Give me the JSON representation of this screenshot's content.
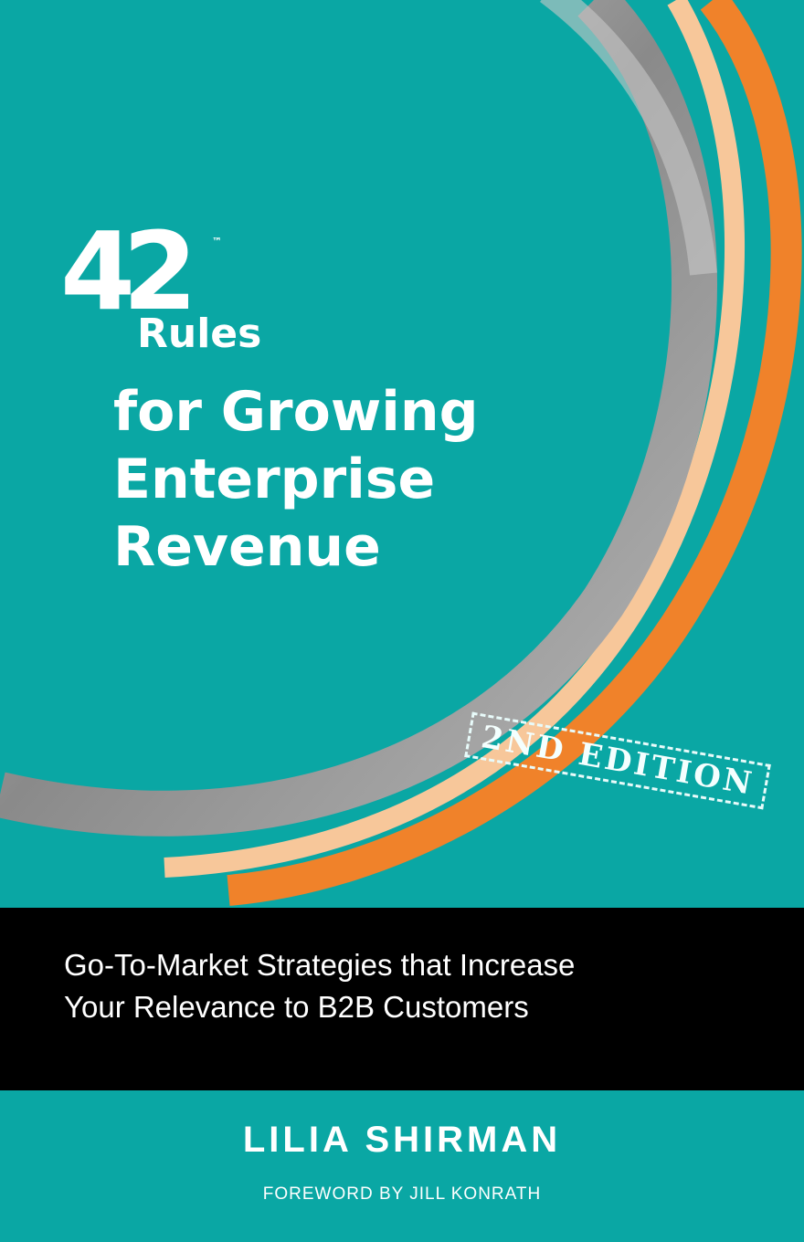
{
  "cover": {
    "number": "42",
    "trademark": "™",
    "rules": "Rules",
    "title_lines": [
      "for Growing",
      "Enterprise",
      "Revenue"
    ],
    "edition_stamp": "2ND EDITION",
    "subtitle_lines": [
      "Go-To-Market Strategies that Increase",
      "Your Relevance to B2B Customers"
    ],
    "author": "LILIA SHIRMAN",
    "foreword": "FOREWORD BY JILL KONRATH"
  },
  "colors": {
    "background": "#0aa7a4",
    "band": "#000000",
    "arc_gray": "#9a9a9a",
    "arc_orange": "#f0822a",
    "arc_peach": "#f7c79a"
  }
}
